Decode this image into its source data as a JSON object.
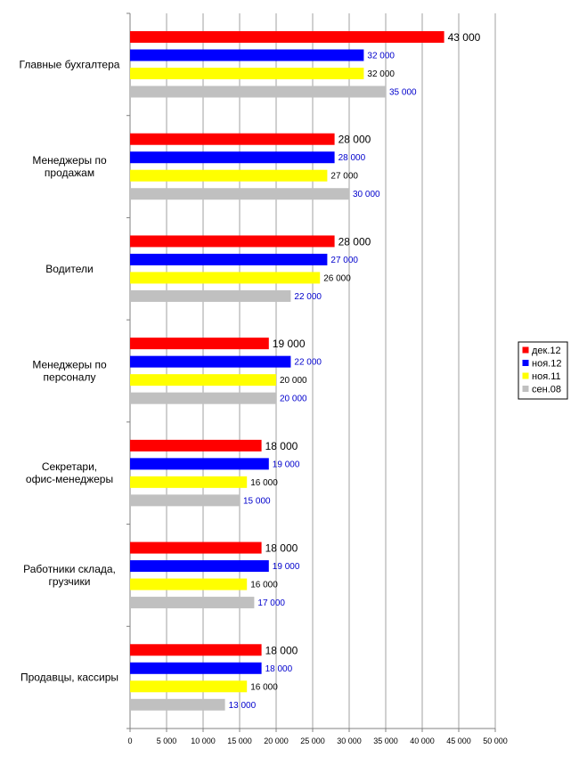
{
  "chart_data": {
    "type": "bar",
    "orientation": "horizontal",
    "categories": [
      "Главные бухгалтера",
      "Менеджеры по продажам",
      "Водители",
      "Менеджеры по персоналу",
      "Секретари, офис-менеджеры",
      "Работники склада, грузчики",
      "Продавцы, кассиры"
    ],
    "series": [
      {
        "name": "дек.12",
        "color": "#ff0000",
        "values": [
          43000,
          28000,
          28000,
          19000,
          18000,
          18000,
          18000
        ],
        "labels": [
          "43 000",
          "28 000",
          "28 000",
          "19 000",
          "18 000",
          "18 000",
          "18 000"
        ],
        "label_color": "#000000"
      },
      {
        "name": "ноя.12",
        "color": "#0000ff",
        "values": [
          32000,
          28000,
          27000,
          22000,
          19000,
          19000,
          18000
        ],
        "labels": [
          "32 000",
          "28 000",
          "27 000",
          "22 000",
          "19 000",
          "19 000",
          "18 000"
        ],
        "label_color": "#0000cc"
      },
      {
        "name": "ноя.11",
        "color": "#ffff00",
        "values": [
          32000,
          27000,
          26000,
          20000,
          16000,
          16000,
          16000
        ],
        "labels": [
          "32 000",
          "27 000",
          "26 000",
          "20 000",
          "16 000",
          "16 000",
          "16 000"
        ],
        "label_color": "#000000"
      },
      {
        "name": "сен.08",
        "color": "#c0c0c0",
        "values": [
          35000,
          30000,
          22000,
          20000,
          15000,
          17000,
          13000
        ],
        "labels": [
          "35 000",
          "30 000",
          "22 000",
          "20 000",
          "15 000",
          "17 000",
          "13 000"
        ],
        "label_color": "#0000cc"
      }
    ],
    "x_ticks": [
      "0",
      "5 000",
      "10 000",
      "15 000",
      "20 000",
      "25 000",
      "30 000",
      "35 000",
      "40 000",
      "45 000",
      "50 000"
    ],
    "xlim": [
      0,
      50000
    ],
    "grid": "vertical",
    "legend": "right",
    "title": "",
    "xlabel": "",
    "ylabel": ""
  }
}
